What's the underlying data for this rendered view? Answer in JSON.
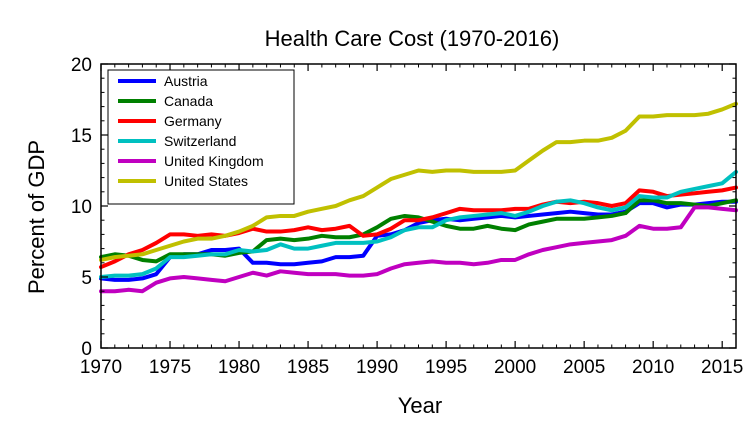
{
  "chart_data": {
    "type": "line",
    "title": "Health Care Cost  (1970-2016)",
    "xlabel": "Year",
    "ylabel": "Percent of GDP",
    "xlim": [
      1970,
      2016
    ],
    "ylim": [
      0,
      20
    ],
    "xticks": [
      1970,
      1975,
      1980,
      1985,
      1990,
      1995,
      2000,
      2005,
      2010,
      2015
    ],
    "yticks": [
      0,
      5,
      10,
      15,
      20
    ],
    "grid": false,
    "legend_position": "top-left",
    "x": [
      1970,
      1971,
      1972,
      1973,
      1974,
      1975,
      1976,
      1977,
      1978,
      1979,
      1980,
      1981,
      1982,
      1983,
      1984,
      1985,
      1986,
      1987,
      1988,
      1989,
      1990,
      1991,
      1992,
      1993,
      1994,
      1995,
      1996,
      1997,
      1998,
      1999,
      2000,
      2001,
      2002,
      2003,
      2004,
      2005,
      2006,
      2007,
      2008,
      2009,
      2010,
      2011,
      2012,
      2013,
      2014,
      2015,
      2016
    ],
    "series": [
      {
        "name": "Austria",
        "color": "#0000ff",
        "values": [
          4.9,
          4.8,
          4.8,
          4.9,
          5.2,
          6.4,
          6.6,
          6.6,
          6.9,
          6.9,
          7.0,
          6.0,
          6.0,
          5.9,
          5.9,
          6.0,
          6.1,
          6.4,
          6.4,
          6.5,
          7.9,
          8.0,
          8.3,
          8.8,
          9.0,
          9.1,
          9.0,
          9.1,
          9.2,
          9.3,
          9.2,
          9.3,
          9.4,
          9.5,
          9.6,
          9.5,
          9.4,
          9.4,
          9.6,
          10.2,
          10.2,
          9.9,
          10.1,
          10.1,
          10.2,
          10.3,
          10.3
        ]
      },
      {
        "name": "Canada",
        "color": "#008000",
        "values": [
          6.4,
          6.6,
          6.5,
          6.2,
          6.1,
          6.6,
          6.6,
          6.6,
          6.6,
          6.5,
          6.7,
          6.8,
          7.6,
          7.7,
          7.6,
          7.7,
          7.9,
          7.8,
          7.8,
          8.0,
          8.5,
          9.1,
          9.3,
          9.2,
          8.9,
          8.6,
          8.4,
          8.4,
          8.6,
          8.4,
          8.3,
          8.7,
          8.9,
          9.1,
          9.1,
          9.1,
          9.2,
          9.3,
          9.5,
          10.4,
          10.4,
          10.2,
          10.2,
          10.1,
          10.0,
          10.2,
          10.4
        ]
      },
      {
        "name": "Germany",
        "color": "#ff0000",
        "values": [
          5.7,
          6.1,
          6.6,
          6.9,
          7.4,
          8.0,
          8.0,
          7.9,
          8.0,
          7.9,
          8.1,
          8.4,
          8.2,
          8.2,
          8.3,
          8.5,
          8.3,
          8.4,
          8.6,
          7.9,
          8.0,
          8.4,
          9.0,
          9.0,
          9.2,
          9.5,
          9.8,
          9.7,
          9.7,
          9.7,
          9.8,
          9.8,
          10.1,
          10.3,
          10.2,
          10.3,
          10.2,
          10.0,
          10.2,
          11.1,
          11.0,
          10.7,
          10.8,
          10.9,
          11.0,
          11.1,
          11.3
        ]
      },
      {
        "name": "Switzerland",
        "color": "#00c0c0",
        "values": [
          5.0,
          5.1,
          5.1,
          5.2,
          5.6,
          6.4,
          6.4,
          6.5,
          6.6,
          6.6,
          6.9,
          6.8,
          6.9,
          7.3,
          7.0,
          7.0,
          7.2,
          7.4,
          7.4,
          7.4,
          7.5,
          7.8,
          8.3,
          8.5,
          8.5,
          9.0,
          9.2,
          9.3,
          9.4,
          9.5,
          9.3,
          9.6,
          10.0,
          10.3,
          10.4,
          10.2,
          9.9,
          9.7,
          9.9,
          10.7,
          10.6,
          10.6,
          11.0,
          11.2,
          11.4,
          11.6,
          12.4
        ]
      },
      {
        "name": "United Kingdom",
        "color": "#c000c0",
        "values": [
          4.0,
          4.0,
          4.1,
          4.0,
          4.6,
          4.9,
          5.0,
          4.9,
          4.8,
          4.7,
          5.0,
          5.3,
          5.1,
          5.4,
          5.3,
          5.2,
          5.2,
          5.2,
          5.1,
          5.1,
          5.2,
          5.6,
          5.9,
          6.0,
          6.1,
          6.0,
          6.0,
          5.9,
          6.0,
          6.2,
          6.2,
          6.6,
          6.9,
          7.1,
          7.3,
          7.4,
          7.5,
          7.6,
          7.9,
          8.6,
          8.4,
          8.4,
          8.5,
          9.9,
          9.9,
          9.8,
          9.7
        ]
      },
      {
        "name": "United States",
        "color": "#c0c000",
        "values": [
          6.2,
          6.4,
          6.5,
          6.6,
          6.9,
          7.2,
          7.5,
          7.7,
          7.7,
          7.9,
          8.2,
          8.6,
          9.2,
          9.3,
          9.3,
          9.6,
          9.8,
          10.0,
          10.4,
          10.7,
          11.3,
          11.9,
          12.2,
          12.5,
          12.4,
          12.5,
          12.5,
          12.4,
          12.4,
          12.4,
          12.5,
          13.2,
          13.9,
          14.5,
          14.5,
          14.6,
          14.6,
          14.8,
          15.3,
          16.3,
          16.3,
          16.4,
          16.4,
          16.4,
          16.5,
          16.8,
          17.2
        ]
      }
    ]
  }
}
